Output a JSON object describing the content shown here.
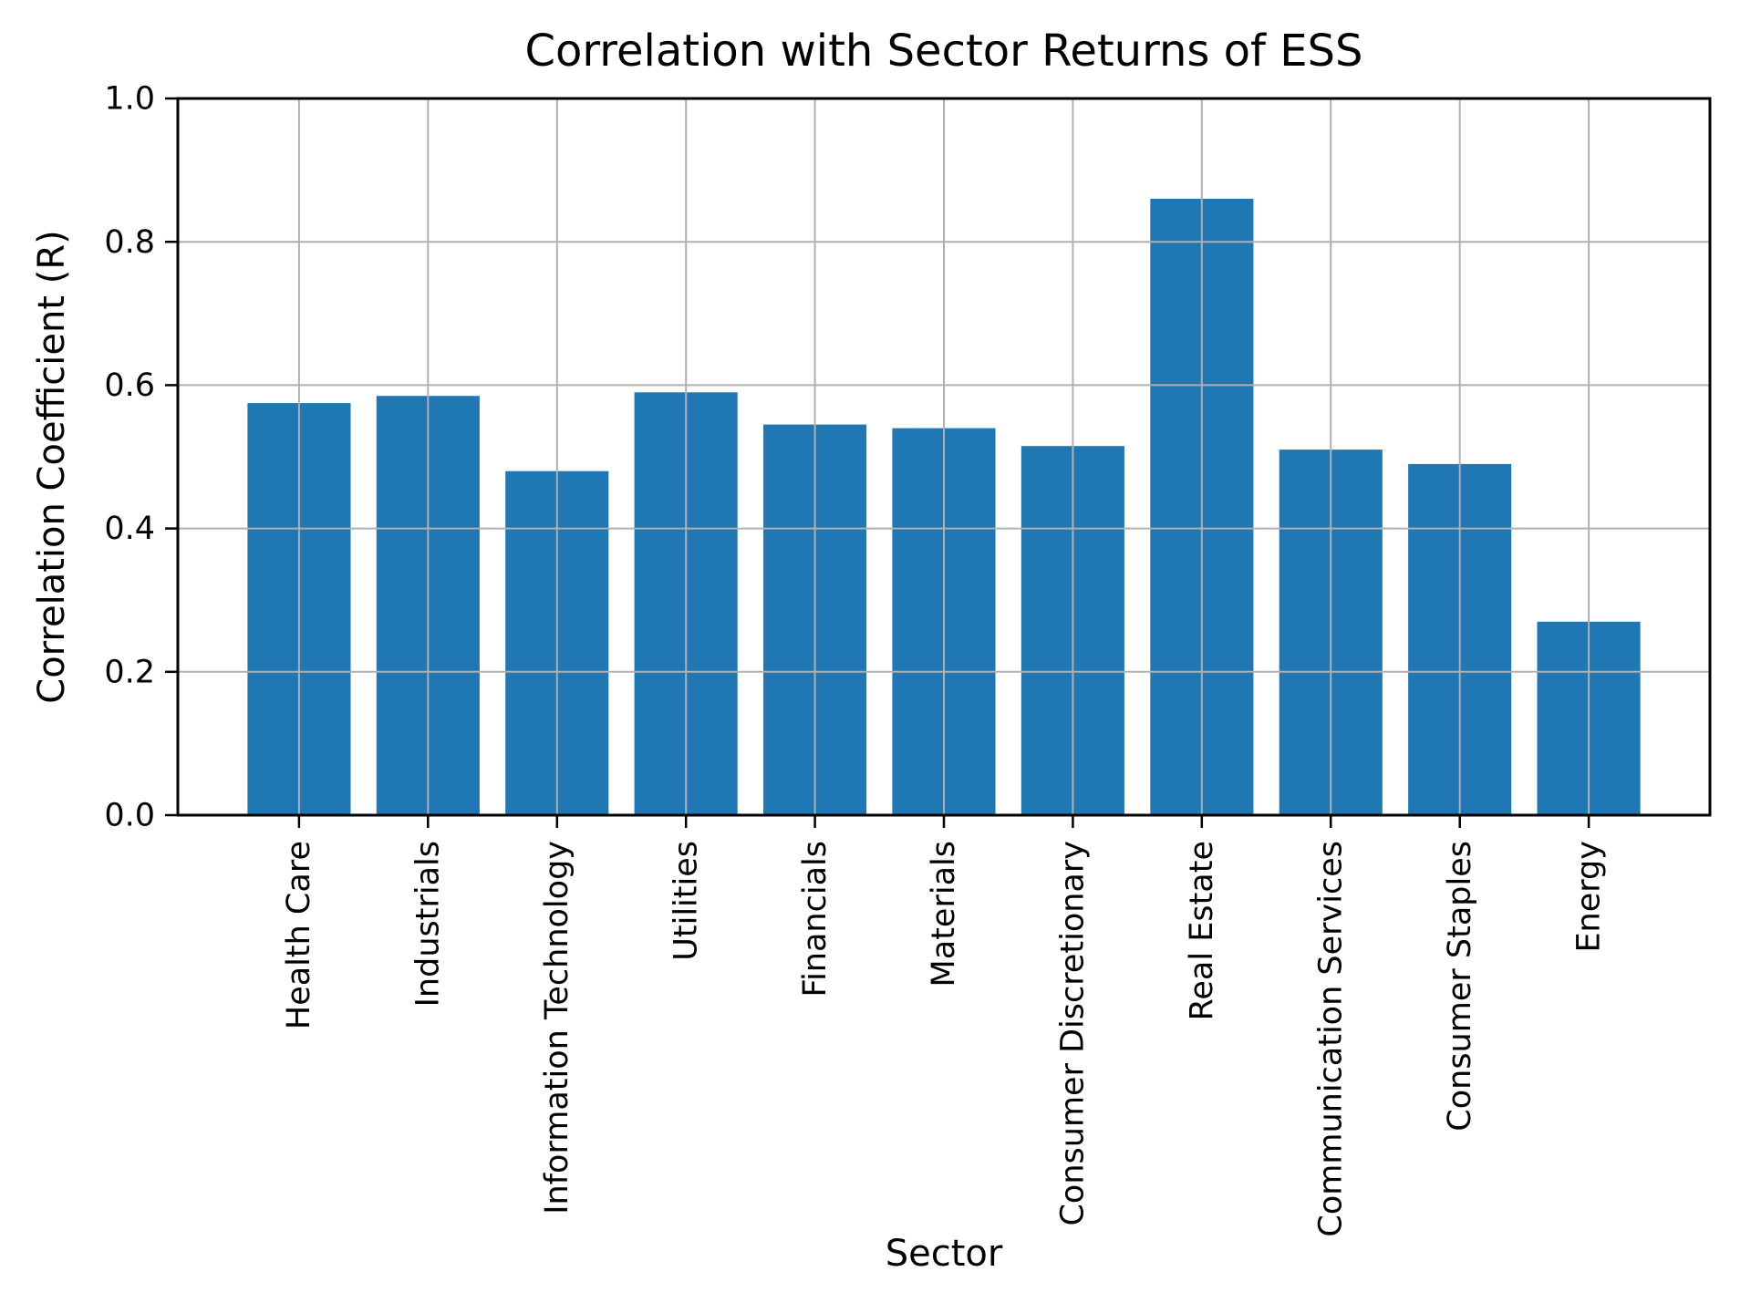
{
  "chart_data": {
    "type": "bar",
    "title": "Correlation with Sector Returns of ESS",
    "xlabel": "Sector",
    "ylabel": "Correlation Coefficient (R)",
    "categories": [
      "Health Care",
      "Industrials",
      "Information Technology",
      "Utilities",
      "Financials",
      "Materials",
      "Consumer Discretionary",
      "Real Estate",
      "Communication Services",
      "Consumer Staples",
      "Energy"
    ],
    "values": [
      0.575,
      0.585,
      0.48,
      0.59,
      0.545,
      0.54,
      0.515,
      0.86,
      0.51,
      0.49,
      0.27
    ],
    "ylim": [
      0.0,
      1.0
    ],
    "ytick_values": [
      0.0,
      0.2,
      0.4,
      0.6,
      0.8,
      1.0
    ],
    "ytick_labels": [
      "0.0",
      "0.2",
      "0.4",
      "0.6",
      "0.8",
      "1.0"
    ],
    "xtick_rotation": -90,
    "grid": "on",
    "grid_over_bars": true,
    "legend_position": "none",
    "bar_color": "#1f77b4",
    "grid_color": "#b0b0b0",
    "spine_color": "#000000"
  }
}
